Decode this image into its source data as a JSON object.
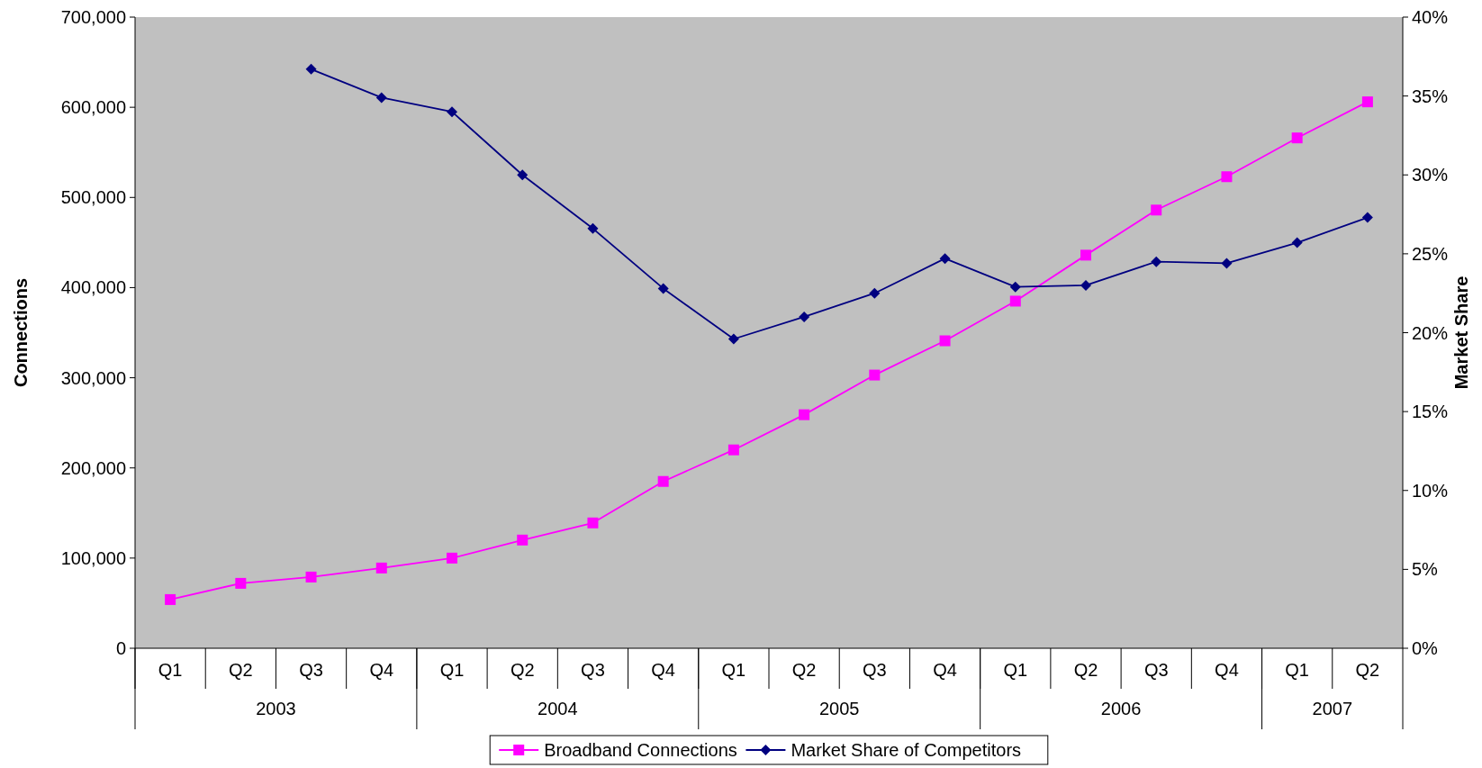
{
  "chart_data": {
    "type": "line",
    "categories": [
      "Q1",
      "Q2",
      "Q3",
      "Q4",
      "Q1",
      "Q2",
      "Q3",
      "Q4",
      "Q1",
      "Q2",
      "Q3",
      "Q4",
      "Q1",
      "Q2",
      "Q3",
      "Q4",
      "Q1",
      "Q2"
    ],
    "annotations": [
      "2003",
      "2004",
      "2005",
      "2006",
      "2007"
    ],
    "ylabel": "Connections",
    "y2label": "Market Share",
    "ylim": [
      0,
      700000
    ],
    "yticks": [
      {
        "value": 0,
        "label": "0"
      },
      {
        "value": 100000,
        "label": "100,000"
      },
      {
        "value": 200000,
        "label": "200,000"
      },
      {
        "value": 300000,
        "label": "300,000"
      },
      {
        "value": 400000,
        "label": "400,000"
      },
      {
        "value": 500000,
        "label": "500,000"
      },
      {
        "value": 600000,
        "label": "600,000"
      },
      {
        "value": 700000,
        "label": "700,000"
      }
    ],
    "y2lim": [
      0,
      40
    ],
    "y2ticks": [
      {
        "value": 0,
        "label": "0%"
      },
      {
        "value": 5,
        "label": "5%"
      },
      {
        "value": 10,
        "label": "10%"
      },
      {
        "value": 15,
        "label": "15%"
      },
      {
        "value": 20,
        "label": "20%"
      },
      {
        "value": 25,
        "label": "25%"
      },
      {
        "value": 30,
        "label": "30%"
      },
      {
        "value": 35,
        "label": "35%"
      },
      {
        "value": 40,
        "label": "40%"
      }
    ],
    "series": [
      {
        "name": "Broadband Connections",
        "color": "#ff00ff",
        "marker": "square",
        "values": [
          54000,
          72000,
          79000,
          89000,
          100000,
          120000,
          139000,
          185000,
          220000,
          259000,
          303000,
          341000,
          385000,
          436000,
          486000,
          523000,
          566000,
          606000
        ]
      },
      {
        "name": "Market Share of Competitors",
        "color": "#000080",
        "marker": "diamond",
        "axis": "y2",
        "values": [
          null,
          null,
          36.7,
          34.9,
          34.0,
          30.0,
          26.6,
          22.8,
          19.6,
          21.0,
          22.5,
          24.7,
          22.9,
          23.0,
          24.5,
          24.4,
          25.7,
          27.3
        ]
      }
    ],
    "grid": false,
    "legend": "bottom"
  }
}
